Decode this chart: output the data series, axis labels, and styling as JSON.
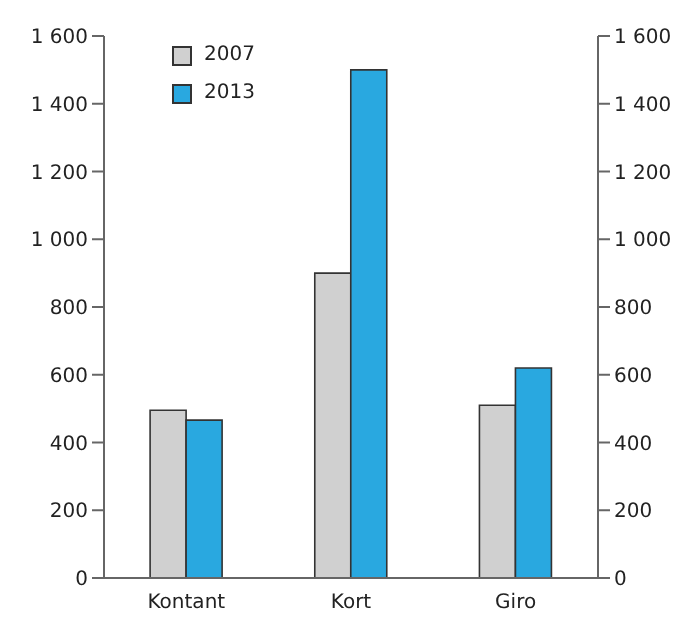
{
  "chart_data": {
    "type": "bar",
    "categories": [
      "Kontant",
      "Kort",
      "Giro"
    ],
    "series": [
      {
        "name": "2007",
        "color": "#d0d0d0",
        "values": [
          495,
          900,
          510
        ]
      },
      {
        "name": "2013",
        "color": "#29a8e0",
        "values": [
          466,
          1500,
          620
        ]
      }
    ],
    "ylim": [
      0,
      1600
    ],
    "yticks": [
      0,
      200,
      400,
      600,
      800,
      {
        "value": 1000,
        "label": "1 000"
      },
      {
        "value": 1200,
        "label": "1 200"
      },
      {
        "value": 1400,
        "label": "1 400"
      },
      {
        "value": 1600,
        "label": "1 600"
      }
    ],
    "y2lim": [
      0,
      1600
    ],
    "y2ticks": [
      0,
      200,
      400,
      600,
      800,
      {
        "value": 1000,
        "label": "1 000"
      },
      {
        "value": 1200,
        "label": "1 200"
      },
      {
        "value": 1400,
        "label": "1 400"
      },
      {
        "value": 1600,
        "label": "1 600"
      }
    ],
    "grid": false,
    "legend": "top left"
  }
}
